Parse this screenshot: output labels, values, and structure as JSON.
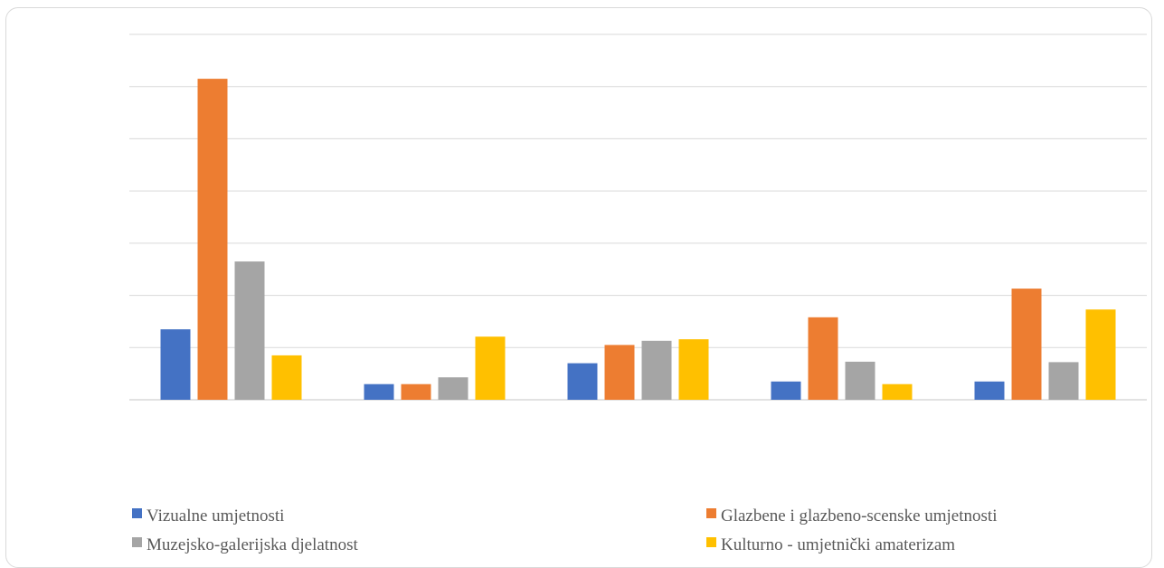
{
  "chart_data": {
    "type": "bar",
    "title": "",
    "xlabel": "",
    "ylabel": "",
    "categories": [
      "",
      "",
      "",
      "",
      ""
    ],
    "ylim": [
      0,
      70
    ],
    "grid": true,
    "legend_position": "bottom",
    "series": [
      {
        "name": "Vizualne umjetnosti",
        "color": "#4472C4",
        "values": [
          13.5,
          3,
          7,
          3.5,
          3.5
        ]
      },
      {
        "name": "Glazbene i glazbeno-scenske umjetnosti",
        "color": "#ED7D31",
        "values": [
          61.5,
          3,
          10.5,
          15.8,
          21.3
        ]
      },
      {
        "name": "Muzejsko-galerijska djelatnost",
        "color": "#A5A5A5",
        "values": [
          26.5,
          4.3,
          11.3,
          7.3,
          7.2
        ]
      },
      {
        "name": "Kulturno - umjetnički amaterizam",
        "color": "#FFC000",
        "values": [
          8.5,
          12.1,
          11.6,
          3,
          17.3
        ]
      }
    ]
  }
}
